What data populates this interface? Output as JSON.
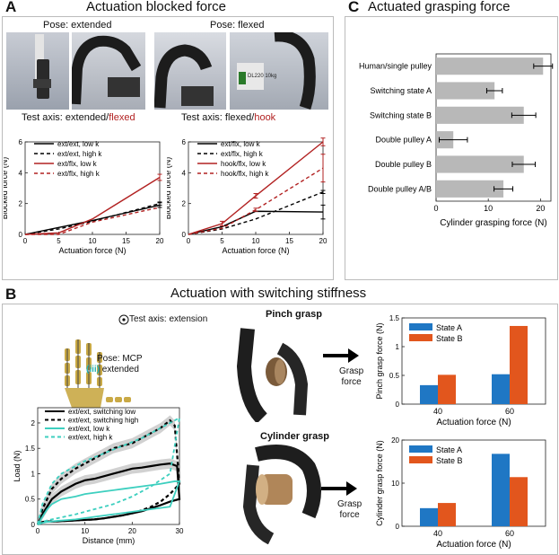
{
  "panelA": {
    "label": "A",
    "title": "Actuation blocked force",
    "pose_extended": "Pose: extended",
    "pose_flexed": "Pose: flexed",
    "axis1_prefix": "Test axis: extended/",
    "axis1_suffix": "flexed",
    "axis2_prefix": "Test axis: flexed/",
    "axis2_suffix": "hook",
    "tag_text": "DL220 10kg"
  },
  "panelB": {
    "label": "B",
    "title": "Actuation with switching stiffness",
    "test_axis": "Test axis: extension",
    "pose": "Pose: MCP",
    "pose_num": "(iii)",
    "pose_word": "extended",
    "pinch_title": "Pinch grasp",
    "cylinder_title": "Cylinder grasp",
    "grasp_force_1": "Grasp",
    "grasp_force_2": "force"
  },
  "panelC": {
    "label": "C",
    "title": "Actuated grasping force"
  },
  "colors": {
    "red": "#b22222",
    "cyan": "#3dcfbf",
    "blue": "#1f77c4",
    "orange": "#e2561d",
    "gray": "#b8b8b8"
  },
  "chart_data": [
    {
      "id": "A1",
      "type": "line",
      "xlabel": "Actuation force (N)",
      "ylabel": "Blocked force (N)",
      "xlim": [
        0,
        20
      ],
      "ylim": [
        0,
        6
      ],
      "xticks": [
        0,
        5,
        10,
        15,
        20
      ],
      "yticks": [
        0,
        2,
        4,
        6
      ],
      "series": [
        {
          "name": "ext/ext, low k",
          "color": "#000000",
          "dash": false,
          "x": [
            0,
            5,
            10,
            20
          ],
          "y": [
            0,
            0.45,
            0.9,
            1.9
          ],
          "err": [
            0,
            0,
            0,
            0.15
          ]
        },
        {
          "name": "ext/ext, high k",
          "color": "#000000",
          "dash": true,
          "x": [
            0,
            5,
            10,
            20
          ],
          "y": [
            0,
            0.35,
            0.85,
            2.0
          ],
          "err": [
            0,
            0,
            0,
            0.1
          ]
        },
        {
          "name": "ext/flx, low k",
          "color": "#b22222",
          "dash": false,
          "x": [
            0,
            5,
            10,
            20
          ],
          "y": [
            0,
            0.1,
            1.0,
            3.7
          ],
          "err": [
            0,
            0,
            0,
            0.2
          ]
        },
        {
          "name": "ext/flx, high k",
          "color": "#b22222",
          "dash": true,
          "x": [
            0,
            5,
            10,
            20
          ],
          "y": [
            0,
            0,
            0.8,
            1.75
          ],
          "err": [
            0,
            0,
            0,
            0
          ]
        }
      ]
    },
    {
      "id": "A2",
      "type": "line",
      "xlabel": "Actuation force (N)",
      "ylabel": "Blocked force (N)",
      "xlim": [
        0,
        20
      ],
      "ylim": [
        0,
        6
      ],
      "xticks": [
        0,
        5,
        10,
        15,
        20
      ],
      "yticks": [
        0,
        2,
        4,
        6
      ],
      "series": [
        {
          "name": "ext/flx, low k",
          "color": "#000000",
          "dash": false,
          "x": [
            0,
            5,
            10,
            20
          ],
          "y": [
            0,
            0.5,
            1.5,
            1.45
          ],
          "err": [
            0,
            0,
            0,
            0.45
          ]
        },
        {
          "name": "ext/flx, high k",
          "color": "#000000",
          "dash": true,
          "x": [
            0,
            5,
            10,
            20
          ],
          "y": [
            0,
            0.35,
            1.0,
            2.75
          ],
          "err": [
            0,
            0,
            0,
            0.1
          ]
        },
        {
          "name": "hook/flx, low k",
          "color": "#b22222",
          "dash": false,
          "x": [
            0,
            5,
            10,
            20
          ],
          "y": [
            0,
            0.7,
            2.5,
            6.0
          ],
          "err": [
            0,
            0.15,
            0.15,
            0.25
          ]
        },
        {
          "name": "hook/flx, high k",
          "color": "#b22222",
          "dash": true,
          "x": [
            0,
            5,
            10,
            20
          ],
          "y": [
            0,
            0.4,
            1.6,
            4.3
          ],
          "err": [
            0,
            0,
            0.1,
            0.9
          ]
        }
      ]
    },
    {
      "id": "B1",
      "type": "line",
      "xlabel": "Distance (mm)",
      "ylabel": "Load (N)",
      "xlim": [
        0,
        30
      ],
      "ylim": [
        0,
        2.3
      ],
      "xticks": [
        0,
        10,
        20,
        30
      ],
      "yticks": [
        0,
        0.5,
        1,
        1.5,
        2
      ],
      "series": [
        {
          "name": "ext/ext, switching low",
          "color": "#000000",
          "dash": false,
          "width": 2.2,
          "x": [
            0,
            0.5,
            1,
            2,
            3,
            5,
            8,
            10,
            12,
            14,
            16,
            18,
            20,
            22,
            24,
            26,
            28,
            29.5,
            30,
            28,
            26,
            24,
            22,
            20,
            18,
            16,
            14,
            12,
            10,
            8,
            6,
            4,
            2,
            1,
            0
          ],
          "y": [
            0,
            0.1,
            0.2,
            0.35,
            0.5,
            0.65,
            0.8,
            0.87,
            0.9,
            0.95,
            1.0,
            1.05,
            1.1,
            1.12,
            1.15,
            1.18,
            1.2,
            1.15,
            0.5,
            0.45,
            0.38,
            0.32,
            0.26,
            0.22,
            0.18,
            0.15,
            0.12,
            0.1,
            0.09,
            0.08,
            0.07,
            0.06,
            0.06,
            0.05,
            0
          ]
        },
        {
          "name": "ext/ext, switching high",
          "color": "#000000",
          "dash": true,
          "width": 2.2,
          "x": [
            0,
            0.5,
            1,
            2,
            3,
            5,
            8,
            10,
            12,
            14,
            16,
            18,
            20,
            22,
            24,
            26,
            28,
            29,
            30,
            28,
            26,
            24,
            22,
            20,
            18,
            16,
            14,
            12,
            10,
            8,
            6,
            4,
            2,
            1,
            0
          ],
          "y": [
            0,
            0.15,
            0.3,
            0.5,
            0.7,
            0.9,
            1.1,
            1.2,
            1.3,
            1.4,
            1.5,
            1.55,
            1.6,
            1.7,
            1.8,
            1.9,
            2.05,
            1.95,
            0.8,
            0.6,
            0.45,
            0.35,
            0.28,
            0.22,
            0.18,
            0.15,
            0.12,
            0.1,
            0.09,
            0.08,
            0.07,
            0.06,
            0.06,
            0.05,
            0
          ]
        },
        {
          "name": "ext/ext, low k",
          "color": "#3dcfbf",
          "dash": false,
          "width": 1.8,
          "x": [
            0,
            1,
            2,
            3,
            5,
            8,
            10,
            14,
            18,
            22,
            26,
            29,
            30,
            28,
            24,
            20,
            16,
            12,
            8,
            4,
            2,
            1,
            0
          ],
          "y": [
            0,
            0.15,
            0.3,
            0.4,
            0.5,
            0.55,
            0.6,
            0.65,
            0.7,
            0.75,
            0.8,
            0.85,
            0.85,
            0.35,
            0.3,
            0.25,
            0.2,
            0.15,
            0.1,
            0.07,
            0.05,
            0.03,
            0
          ]
        },
        {
          "name": "ext/ext, high k",
          "color": "#3dcfbf",
          "dash": true,
          "width": 1.8,
          "x": [
            0,
            0.5,
            1,
            2,
            3,
            5,
            8,
            10,
            14,
            18,
            22,
            26,
            29,
            30,
            28,
            24,
            20,
            16,
            12,
            8,
            4,
            2,
            1,
            0
          ],
          "y": [
            0,
            0.2,
            0.4,
            0.6,
            0.8,
            1.0,
            1.15,
            1.25,
            1.4,
            1.55,
            1.7,
            1.9,
            2.05,
            2.1,
            1.0,
            0.75,
            0.55,
            0.4,
            0.3,
            0.2,
            0.12,
            0.08,
            0.05,
            0
          ]
        }
      ]
    },
    {
      "id": "B2",
      "type": "bar",
      "xlabel": "Actuation force (N)",
      "ylabel": "Pinch grasp force (N)",
      "categories": [
        "40",
        "60"
      ],
      "ylim": [
        0,
        1.5
      ],
      "yticks": [
        0,
        0.5,
        1,
        1.5
      ],
      "series": [
        {
          "name": "State A",
          "color": "#1f77c4",
          "values": [
            0.33,
            0.52
          ]
        },
        {
          "name": "State B",
          "color": "#e2561d",
          "values": [
            0.51,
            1.36
          ]
        }
      ]
    },
    {
      "id": "B3",
      "type": "bar",
      "xlabel": "Actuation force (N)",
      "ylabel": "Cylinder grasp force (N)",
      "categories": [
        "40",
        "60"
      ],
      "ylim": [
        0,
        20
      ],
      "yticks": [
        0,
        10,
        20
      ],
      "series": [
        {
          "name": "State A",
          "color": "#1f77c4",
          "values": [
            4.2,
            16.8
          ]
        },
        {
          "name": "State B",
          "color": "#e2561d",
          "values": [
            5.4,
            11.4
          ]
        }
      ]
    },
    {
      "id": "C1",
      "type": "bar",
      "orientation": "horizontal",
      "xlabel": "Cylinder grasping force (N)",
      "xlim": [
        0,
        22
      ],
      "xticks": [
        0,
        10,
        20
      ],
      "categories": [
        "Human/single pulley",
        "Switching state A",
        "Switching state B",
        "Double pulley A",
        "Double pulley B",
        "Double pulley A/B"
      ],
      "values": [
        20.5,
        11.2,
        16.8,
        3.3,
        16.8,
        12.9
      ],
      "errors": [
        1.8,
        1.5,
        2.3,
        2.7,
        2.2,
        1.8
      ]
    }
  ]
}
